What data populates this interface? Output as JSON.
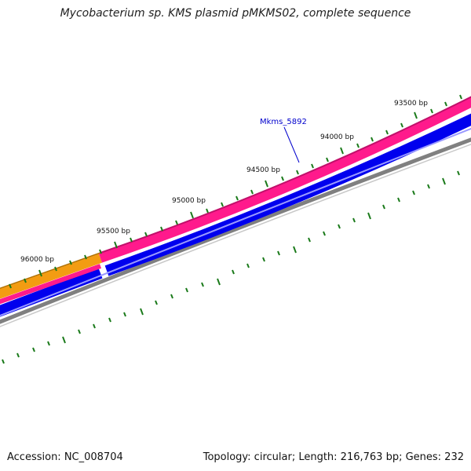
{
  "title": "Mycobacterium sp. KMS plasmid pMKMS02, complete sequence",
  "footer": {
    "accession": "Accession: NC_008704",
    "summary": "Topology: circular; Length: 216,763 bp; Genes: 232"
  },
  "gene_label": "Mkms_5892",
  "bp_labels": [
    "93500 bp",
    "94000 bp",
    "94500 bp",
    "95000 bp",
    "95500 bp",
    "96000 bp"
  ],
  "colors": {
    "ticks": "#1a7a1a",
    "forward_gene": "#ff1a8c",
    "forward_gene_edge": "#c0106a",
    "other_gene": "#f39c12",
    "reverse_gene": "#0000ee",
    "backbone": "#808080",
    "label": "#0000cc"
  }
}
